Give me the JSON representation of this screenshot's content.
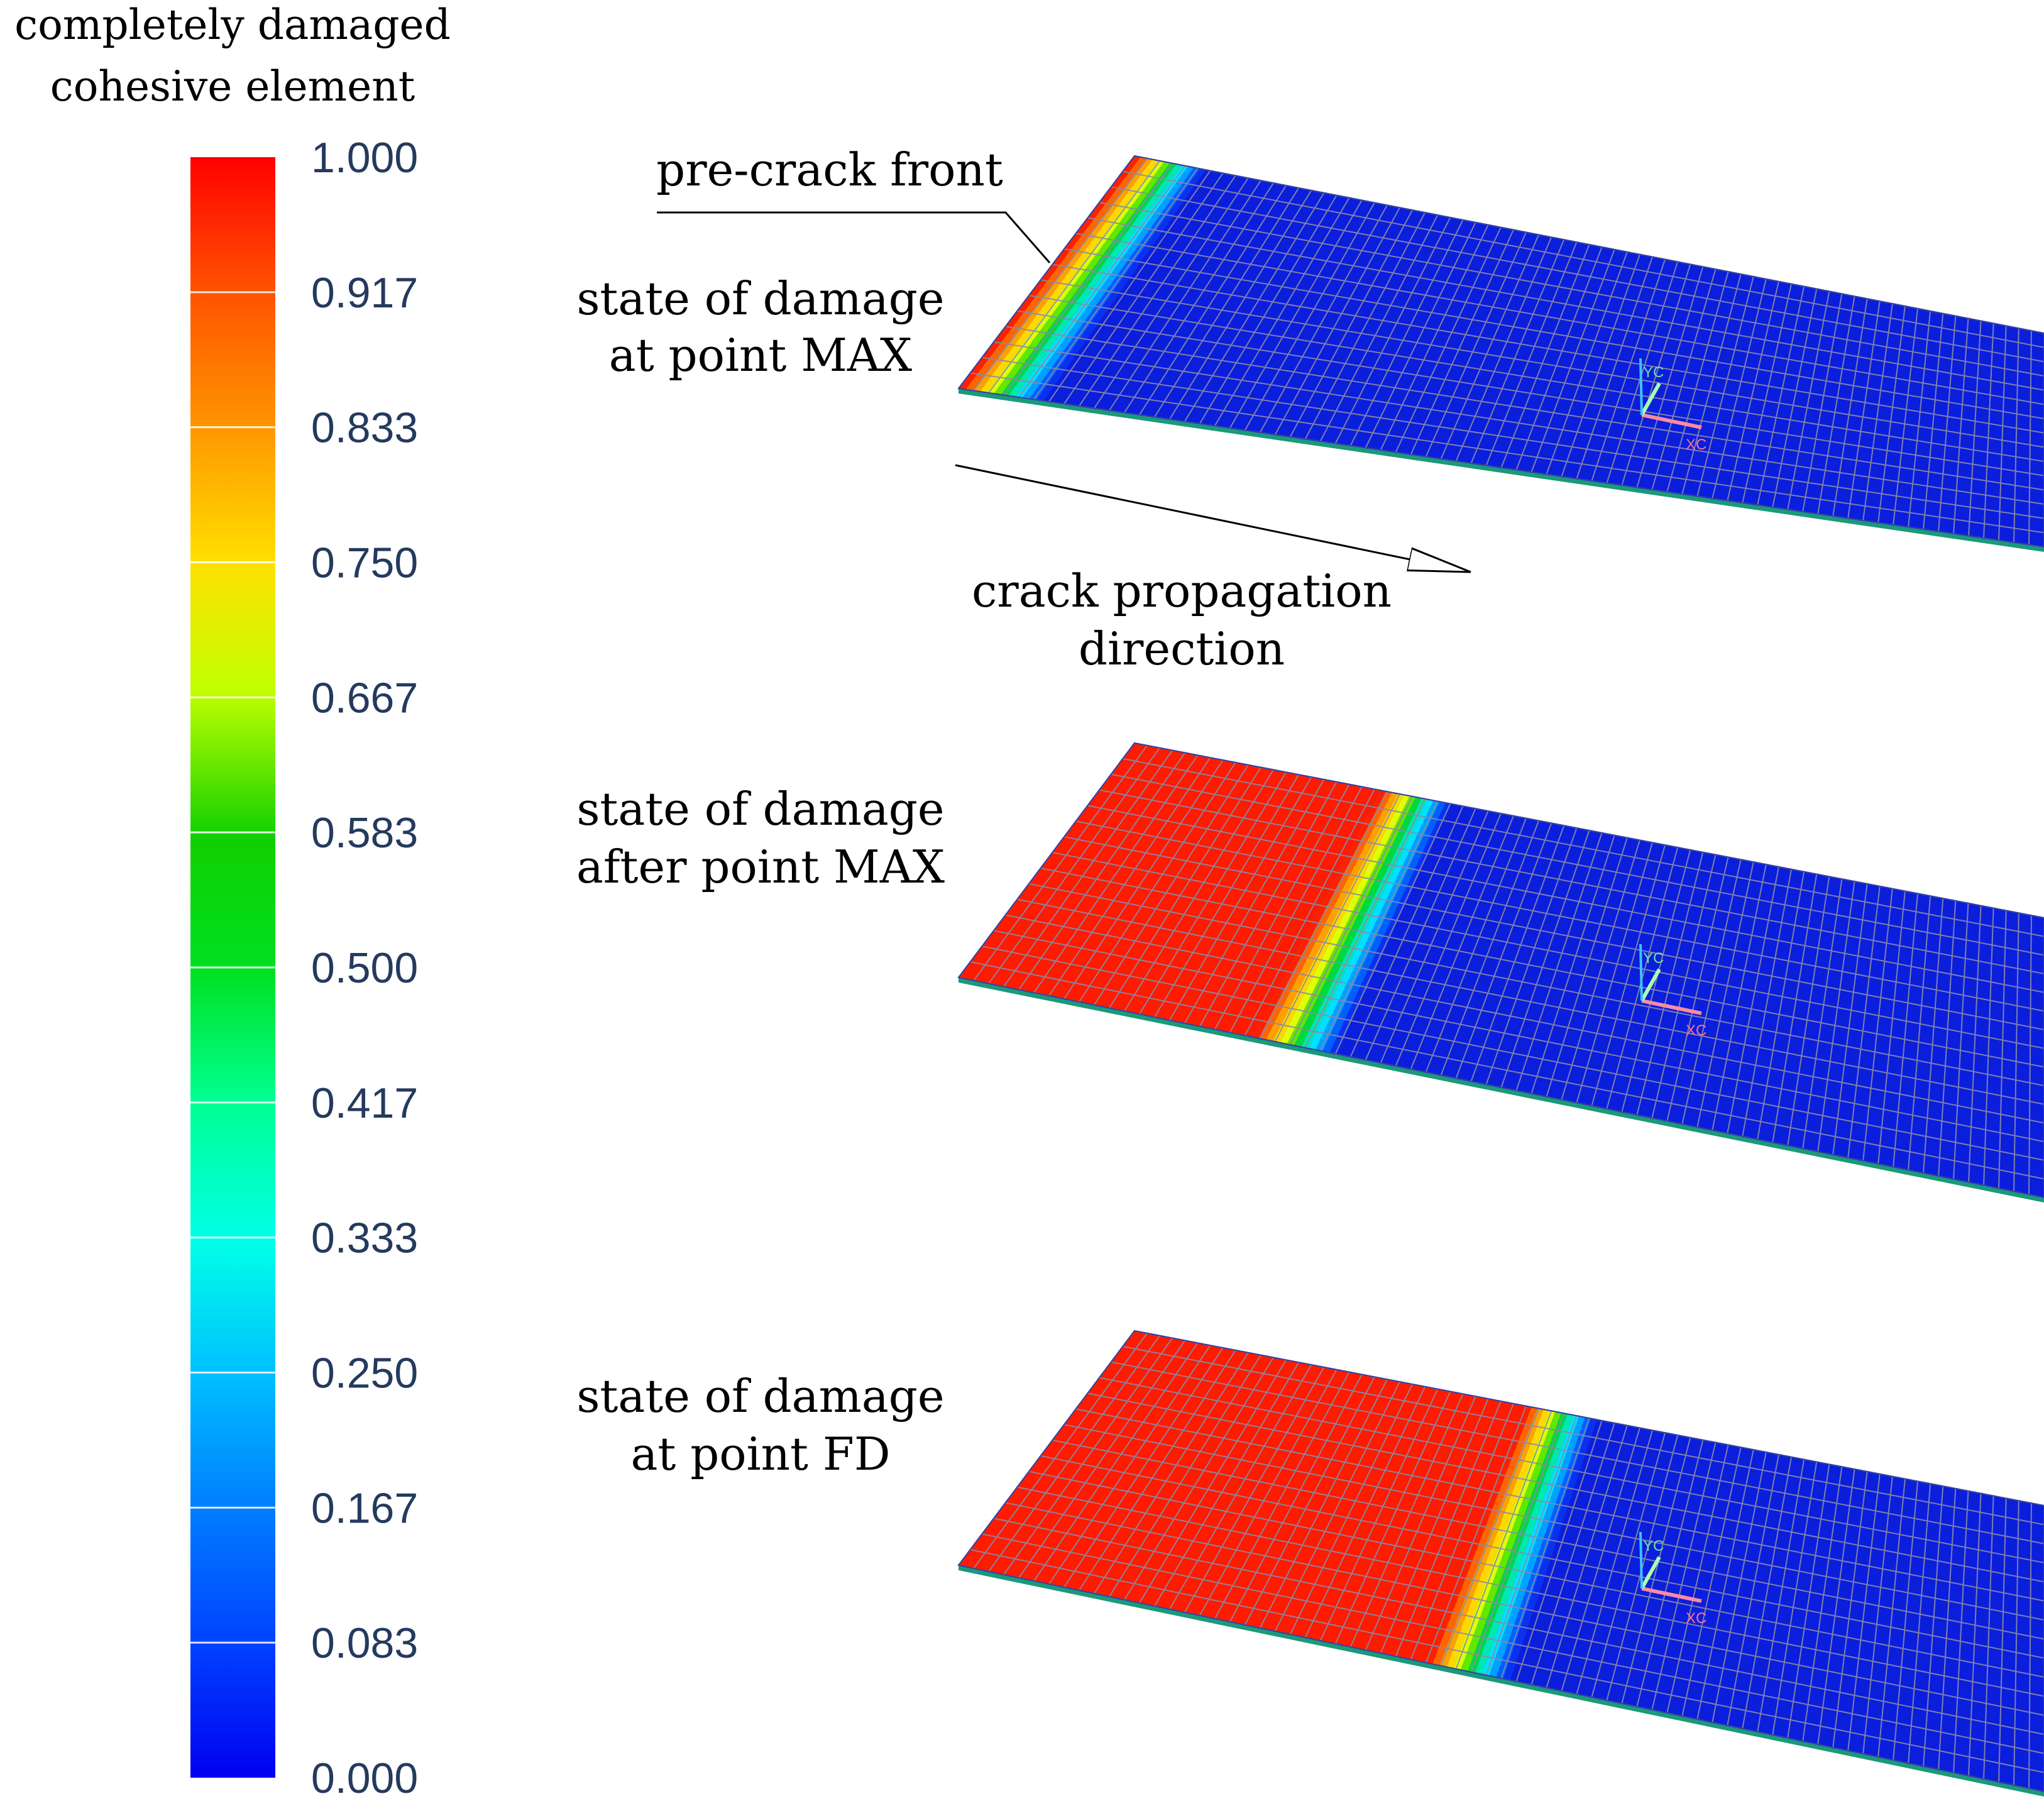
{
  "legend": {
    "title_line1": "completely damaged",
    "title_line2": "cohesive element",
    "ticks": [
      "1.000",
      "0.917",
      "0.833",
      "0.750",
      "0.667",
      "0.583",
      "0.500",
      "0.417",
      "0.333",
      "0.250",
      "0.167",
      "0.083",
      "0.000"
    ],
    "colors": [
      "#ff0000",
      "#ff6a00",
      "#ffb000",
      "#ffe800",
      "#c8ff00",
      "#00d800",
      "#00ff60",
      "#00ffc8",
      "#00f0ff",
      "#00a8ff",
      "#0060ff",
      "#0018ff"
    ]
  },
  "annotations": {
    "pre_crack_front": "pre-crack front",
    "crack_direction_line1": "crack propagation",
    "crack_direction_line2": "direction"
  },
  "panels": [
    {
      "label_line1": "state of damage",
      "label_line2": "at point MAX",
      "damaged_fraction": 0.0
    },
    {
      "label_line1": "state of damage",
      "label_line2": "after point MAX",
      "damaged_fraction": 0.27
    },
    {
      "label_line1": "state of damage",
      "label_line2": "at point FD",
      "damaged_fraction": 0.43
    }
  ],
  "triad": {
    "axis_x": "XC",
    "axis_y": "YC"
  },
  "colors": {
    "damaged": "#ff1a00",
    "undamaged": "#0a1edc",
    "mesh_line": "#8a8aa8",
    "text": "#000000",
    "tick_text": "#243a5e"
  }
}
